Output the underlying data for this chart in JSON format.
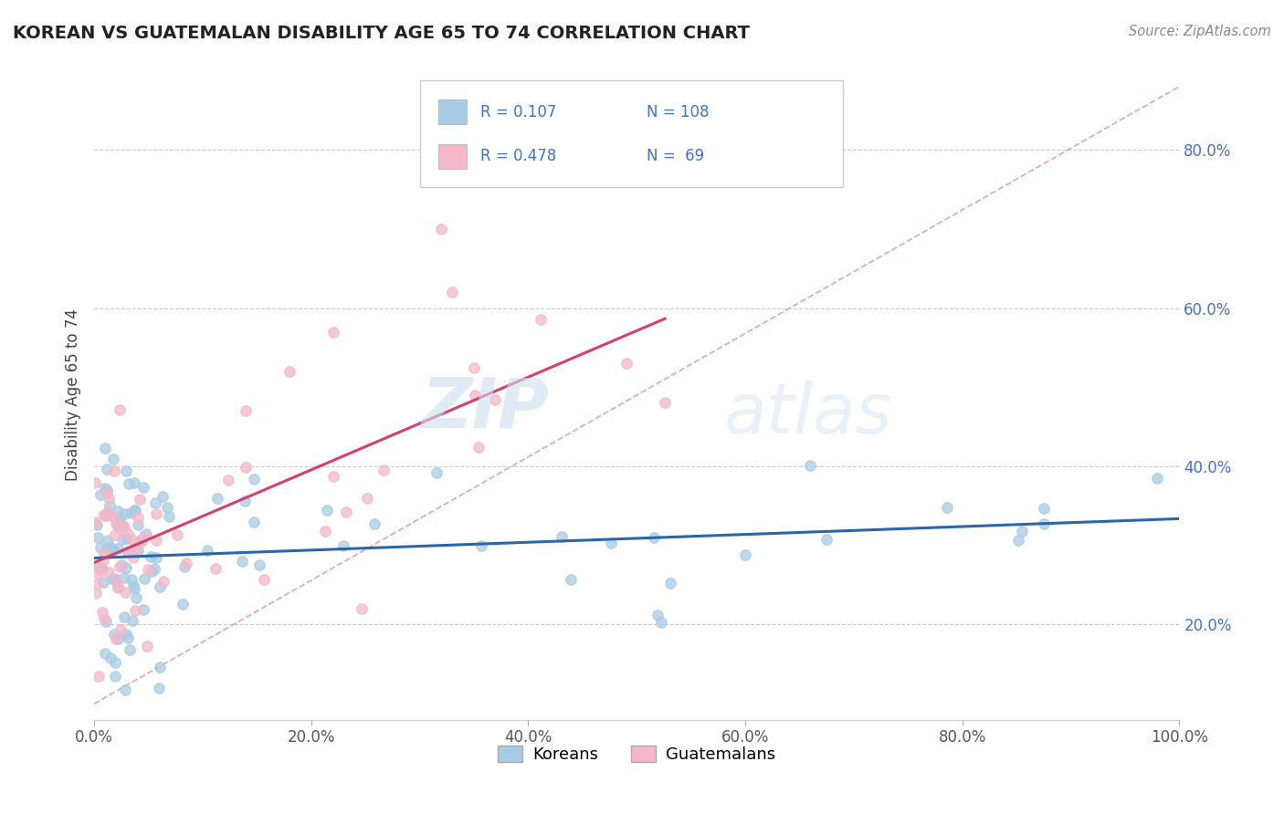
{
  "title": "KOREAN VS GUATEMALAN DISABILITY AGE 65 TO 74 CORRELATION CHART",
  "source": "Source: ZipAtlas.com",
  "ylabel": "Disability Age 65 to 74",
  "xlim": [
    0.0,
    1.0
  ],
  "ylim": [
    0.08,
    0.9
  ],
  "xticks": [
    0.0,
    0.2,
    0.4,
    0.6,
    0.8,
    1.0
  ],
  "xtick_labels": [
    "0.0%",
    "20.0%",
    "40.0%",
    "60.0%",
    "80.0%",
    "100.0%"
  ],
  "yticks": [
    0.2,
    0.4,
    0.6,
    0.8
  ],
  "ytick_labels": [
    "20.0%",
    "40.0%",
    "60.0%",
    "80.0%"
  ],
  "korean_color": "#a8cce4",
  "guatemalan_color": "#f4b8c8",
  "korean_line_color": "#2a67a8",
  "guatemalan_line_color": "#d44070",
  "diagonal_line_color": "#e0a0b0",
  "korean_R": 0.107,
  "korean_N": 108,
  "guatemalan_R": 0.478,
  "guatemalan_N": 69,
  "watermark_zip": "ZIP",
  "watermark_atlas": "atlas",
  "background_color": "#ffffff",
  "grid_color": "#cccccc",
  "ytick_color": "#4472c4",
  "title_color": "#222222",
  "source_color": "#888888",
  "legend_text_color": "#4472c4"
}
